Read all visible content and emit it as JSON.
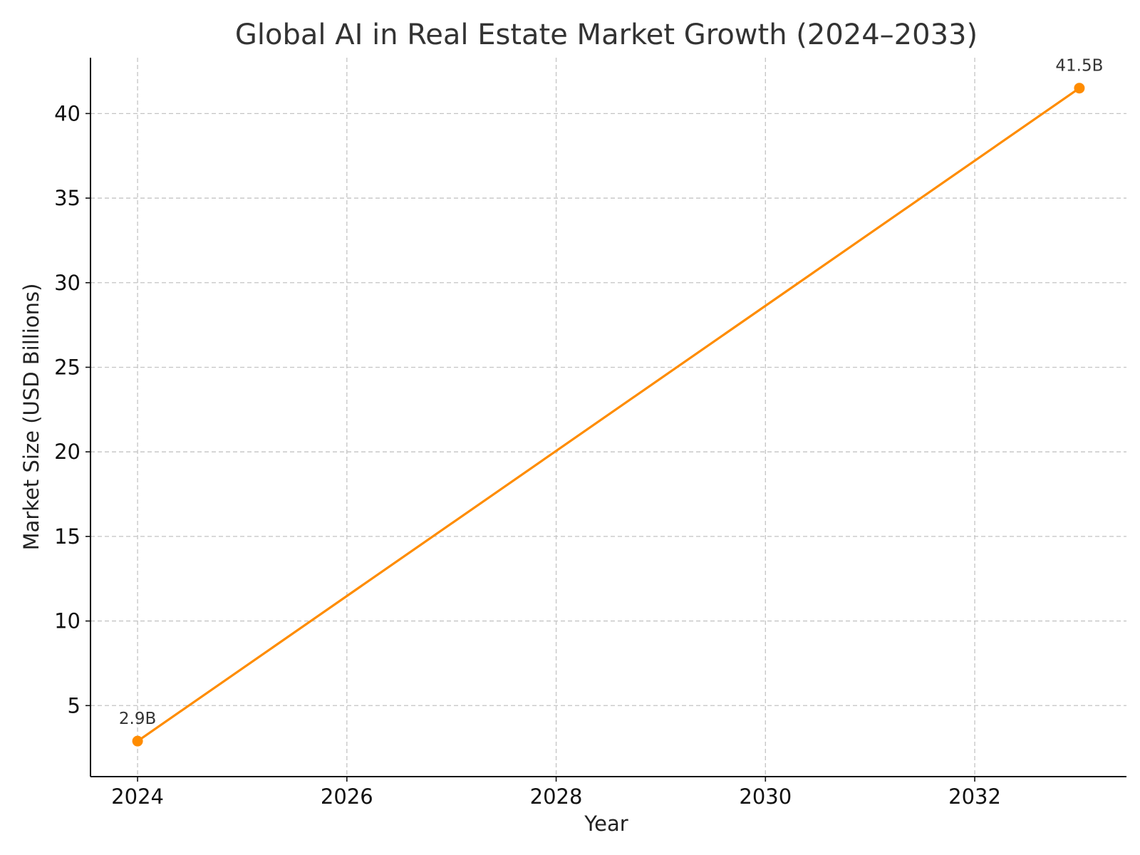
{
  "chart_data": {
    "type": "line",
    "title": "Global AI in Real Estate Market Growth (2024–2033)",
    "xlabel": "Year",
    "ylabel": "Market Size (USD Billions)",
    "xlim": [
      2023.55,
      2033.45
    ],
    "ylim": [
      0.8,
      43.3
    ],
    "xticks": [
      2024,
      2026,
      2028,
      2030,
      2032
    ],
    "xtick_labels": [
      "2024",
      "2026",
      "2028",
      "2030",
      "2032"
    ],
    "yticks": [
      5,
      10,
      15,
      20,
      25,
      30,
      35,
      40
    ],
    "ytick_labels": [
      "5",
      "10",
      "15",
      "20",
      "25",
      "30",
      "35",
      "40"
    ],
    "grid": true,
    "series": [
      {
        "color": "#ff8c00",
        "x": [
          2024,
          2033
        ],
        "y": [
          2.9,
          41.5
        ]
      }
    ],
    "data_labels": [
      {
        "x": 2024,
        "y": 2.9,
        "text": "2.9B"
      },
      {
        "x": 2033,
        "y": 41.5,
        "text": "41.5B"
      }
    ]
  }
}
